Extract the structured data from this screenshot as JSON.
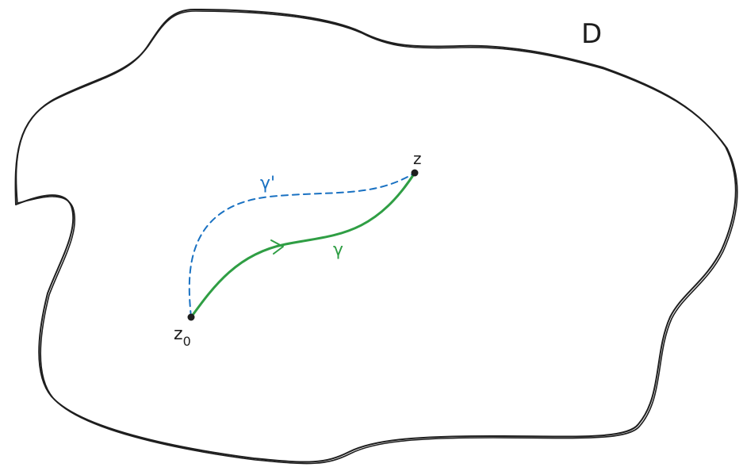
{
  "diagram": {
    "region_label": "D",
    "start_point_label": "z",
    "start_point_subscript": "0",
    "end_point_label": "z",
    "path_label": "γ",
    "alt_path_label": "γ'",
    "colors": {
      "outline": "#1e1e1e",
      "path": "#2f9e44",
      "alt_path": "#1971c2",
      "point": "#1e1e1e",
      "background": "#ffffff"
    }
  }
}
